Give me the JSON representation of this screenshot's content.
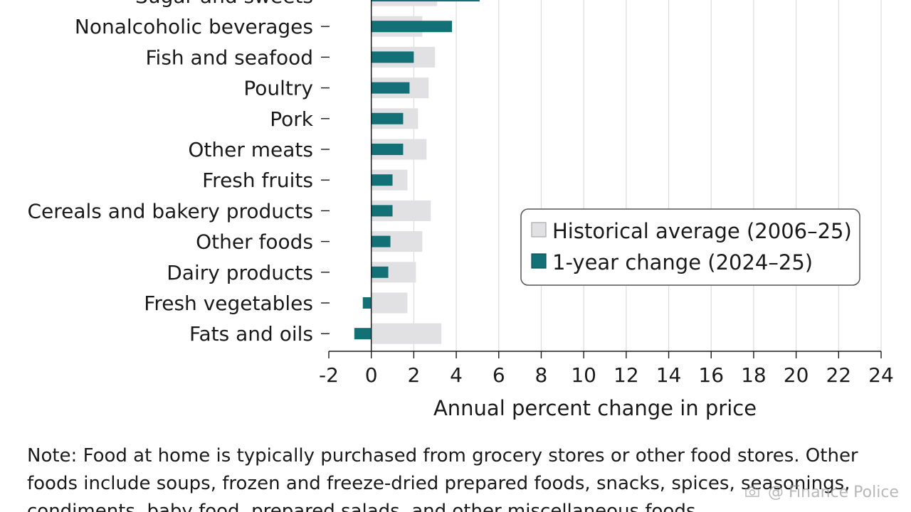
{
  "chart_data": {
    "type": "bar",
    "orientation": "horizontal",
    "categories": [
      "Sugar and sweets",
      "Nonalcoholic beverages",
      "Fish and seafood",
      "Poultry",
      "Pork",
      "Other meats",
      "Fresh fruits",
      "Cereals and bakery products",
      "Other foods",
      "Dairy products",
      "Fresh vegetables",
      "Fats and oils"
    ],
    "series": [
      {
        "name": "Historical average (2006–25)",
        "color": "#e1e1e3",
        "values": [
          3.1,
          2.4,
          3.0,
          2.7,
          2.2,
          2.6,
          1.7,
          2.8,
          2.4,
          2.1,
          1.7,
          3.3
        ]
      },
      {
        "name": "1-year change (2024–25)",
        "color": "#137076",
        "values": [
          5.1,
          3.8,
          2.0,
          1.8,
          1.5,
          1.5,
          1.0,
          1.0,
          0.9,
          0.8,
          -0.4,
          -0.8
        ]
      }
    ],
    "xlim": [
      -2,
      24
    ],
    "xticks": [
      "-2",
      "0",
      "2",
      "4",
      "6",
      "8",
      "10",
      "12",
      "14",
      "16",
      "18",
      "20",
      "22",
      "24"
    ],
    "xlabel": "Annual percent change in price",
    "ylabel": "",
    "title": "",
    "grid": true,
    "legend_position": "lower-right"
  },
  "legend": {
    "historical": "Historical average (2006–25)",
    "one_year": "1-year change (2024–25)"
  },
  "note": "Note: Food at home is typically purchased from grocery stores or other food stores. Other foods include soups, frozen and freeze-dried prepared foods, snacks, spices, seasonings, condiments, baby food, prepared salads, and other miscellaneous foods.",
  "watermark": {
    "icon": "camera-icon",
    "text": "@ Finance Police"
  }
}
